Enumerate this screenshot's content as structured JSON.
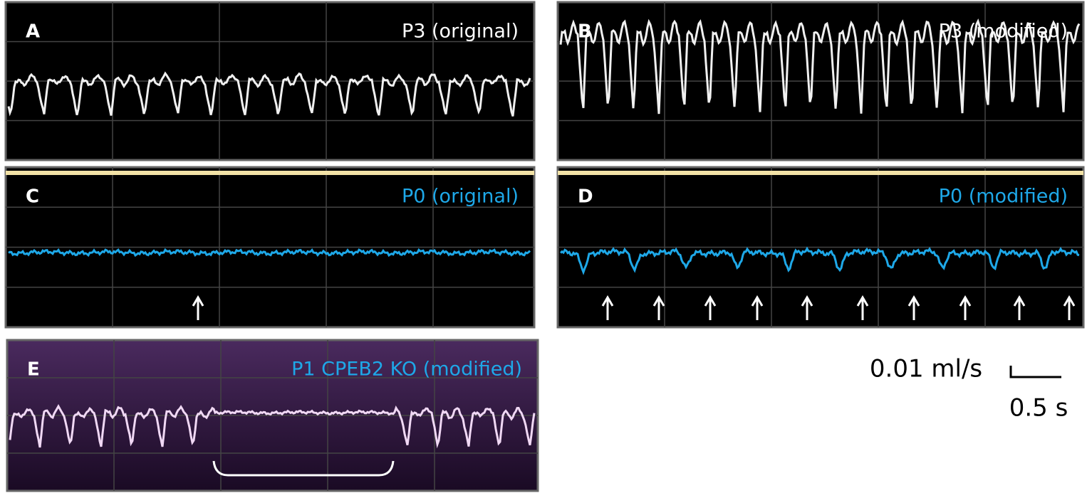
{
  "panels": [
    {
      "letter": "A",
      "label": "P3 (original)"
    },
    {
      "letter": "B",
      "label": "P3 (modified)"
    },
    {
      "letter": "C",
      "label": "P0 (original)"
    },
    {
      "letter": "D",
      "label": "P0 (modified)"
    },
    {
      "letter": "E",
      "label": "P1 CPEB2 KO  (modified)"
    }
  ],
  "scale_bar": {
    "y_label": "0.01 ml/s",
    "x_label": "0.5 s"
  }
}
